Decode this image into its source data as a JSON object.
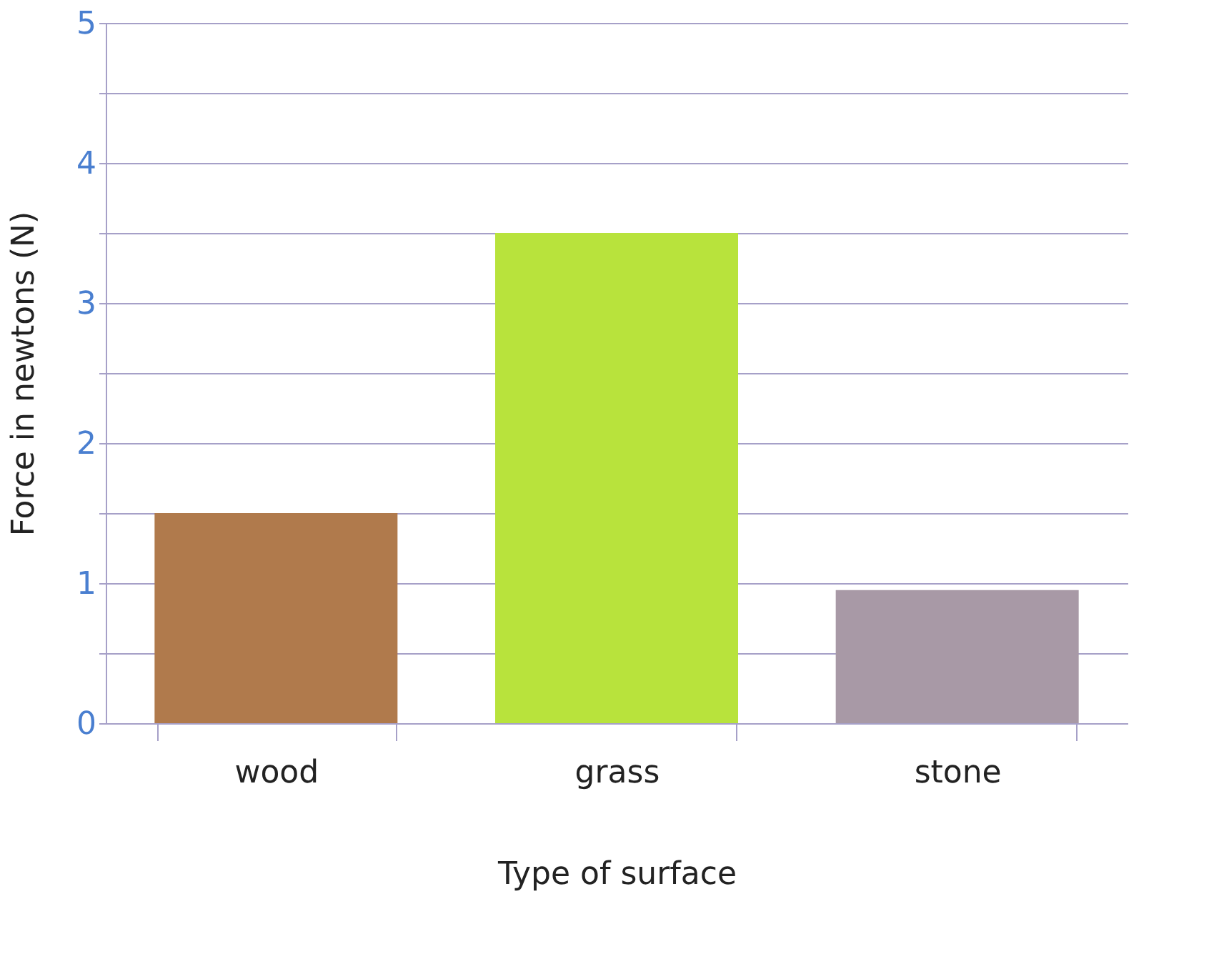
{
  "chart_data": {
    "type": "bar",
    "xlabel": "Type of surface",
    "ylabel": "Force in newtons (N)",
    "categories": [
      "wood",
      "grass",
      "stone"
    ],
    "values": [
      1.5,
      3.5,
      0.95
    ],
    "colors": [
      "#b07a4c",
      "#b8e33c",
      "#a899a6"
    ],
    "ylim": [
      0,
      5
    ],
    "yticks": [
      0,
      {
        "value": 0.5,
        "label": null
      },
      1,
      {
        "value": 1.5,
        "label": null
      },
      2,
      {
        "value": 2.5,
        "label": null
      },
      3,
      {
        "value": 3.5,
        "label": null
      },
      4,
      {
        "value": 4.5,
        "label": null
      },
      5
    ],
    "grid": "y"
  }
}
